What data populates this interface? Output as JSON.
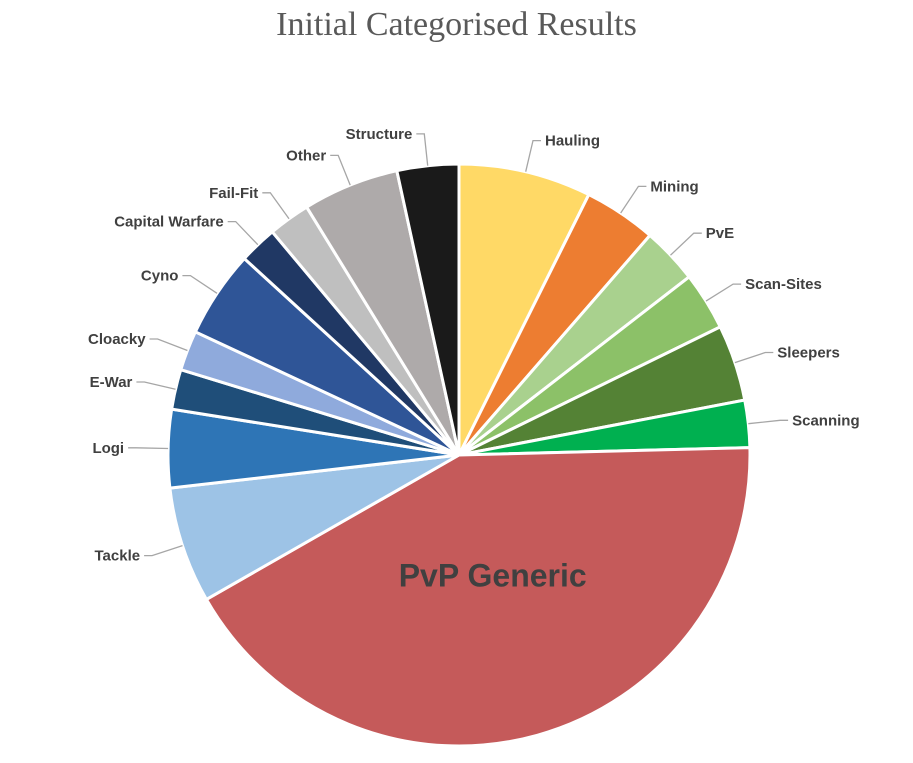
{
  "chart_data": {
    "type": "pie",
    "title": "Initial Categorised Results",
    "series": [
      {
        "name": "Hauling",
        "value": 7.3,
        "color": "#FFD966"
      },
      {
        "name": "Mining",
        "value": 4.0,
        "color": "#ED7D31"
      },
      {
        "name": "PvE",
        "value": 3.1,
        "color": "#A9D18E"
      },
      {
        "name": "Scan-Sites",
        "value": 3.2,
        "color": "#8CC168"
      },
      {
        "name": "Sleepers",
        "value": 4.2,
        "color": "#548235"
      },
      {
        "name": "Scanning",
        "value": 2.6,
        "color": "#00B050"
      },
      {
        "name": "PvP Generic",
        "value": 41.8,
        "color": "#C55A5A"
      },
      {
        "name": "Tackle",
        "value": 6.4,
        "color": "#9DC3E6"
      },
      {
        "name": "Logi",
        "value": 4.3,
        "color": "#2E75B6"
      },
      {
        "name": "E-War",
        "value": 2.2,
        "color": "#1F4E79"
      },
      {
        "name": "Cloacky",
        "value": 2.2,
        "color": "#8FAADC"
      },
      {
        "name": "Cyno",
        "value": 4.8,
        "color": "#2F5597"
      },
      {
        "name": "Capital Warfare",
        "value": 2.1,
        "color": "#203864"
      },
      {
        "name": "Fail-Fit",
        "value": 2.3,
        "color": "#BFBFBF"
      },
      {
        "name": "Other",
        "value": 5.3,
        "color": "#AEAAAA"
      },
      {
        "name": "Structure",
        "value": 3.4,
        "color": "#1A1A1A"
      }
    ],
    "start_angle_deg": 0,
    "direction": "clockwise",
    "inside_label": "PvP Generic",
    "legend": "none"
  }
}
